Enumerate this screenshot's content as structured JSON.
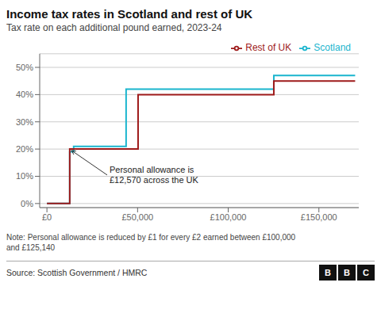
{
  "chart_data": {
    "type": "line",
    "title": "Income tax rates in Scotland and rest of UK",
    "subtitle": "Tax rate on each additional pound earned, 2023-24",
    "note": "Note: Personal allowance is reduced by £1 for every £2 earned between £100,000\nand £125,140",
    "source": "Source: Scottish Government / HMRC",
    "logo": "BBC",
    "series": [
      {
        "name": "Scotland",
        "color": "#1ab5ce",
        "x": [
          0,
          12570,
          12570,
          14732,
          14732,
          43662,
          43662,
          125140,
          125140,
          170000
        ],
        "values": [
          0,
          0,
          19,
          19,
          21,
          21,
          42,
          42,
          47,
          47
        ]
      },
      {
        "name": "Rest of UK",
        "color": "#9e1a1a",
        "x": [
          0,
          12570,
          12570,
          50270,
          50270,
          125140,
          125140,
          170000
        ],
        "values": [
          0,
          0,
          20,
          20,
          40,
          40,
          45,
          45
        ]
      }
    ],
    "xlim": [
      -4000,
      172000
    ],
    "ylim": [
      -1.5,
      55
    ],
    "xticks": [
      {
        "value": 0,
        "label": "£0"
      },
      {
        "value": 50000,
        "label": "£50,000"
      },
      {
        "value": 100000,
        "label": "£100,000"
      },
      {
        "value": 150000,
        "label": "£150,000"
      }
    ],
    "yticks": [
      {
        "value": 0,
        "label": "0%"
      },
      {
        "value": 10,
        "label": "10%"
      },
      {
        "value": 20,
        "label": "20%"
      },
      {
        "value": 30,
        "label": "30%"
      },
      {
        "value": 40,
        "label": "40%"
      },
      {
        "value": 50,
        "label": "50%"
      }
    ],
    "grid": true,
    "legend": "upper right",
    "annotations": [
      {
        "text": "Personal allowance is\n£12,570 across the UK",
        "x": 13500,
        "y": 19.5
      }
    ]
  }
}
